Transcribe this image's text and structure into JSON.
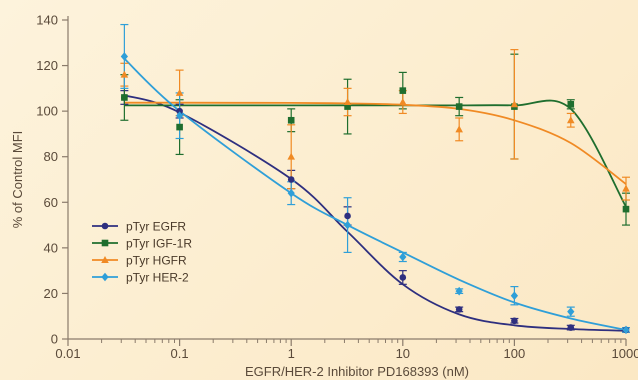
{
  "chart_data": {
    "type": "line",
    "title": "",
    "xlabel": "EGFR/HER-2 Inhibitor PD168393 (nM)",
    "ylabel": "% of Control MFI",
    "x_scale": "log",
    "xlim": [
      0.01,
      1000
    ],
    "ylim": [
      0,
      140
    ],
    "x_ticks": [
      0.01,
      0.1,
      1,
      10,
      100,
      1000
    ],
    "x_tick_labels": [
      "0.01",
      "0.1",
      "1",
      "10",
      "100",
      "1000"
    ],
    "y_ticks": [
      0,
      20,
      40,
      60,
      80,
      100,
      120,
      140
    ],
    "y_tick_labels": [
      "0",
      "20",
      "40",
      "60",
      "80",
      "100",
      "120",
      "140"
    ],
    "grid": false,
    "legend_position": "center-left",
    "x": [
      0.032,
      0.1,
      1,
      3.2,
      10,
      32,
      100,
      320,
      1000
    ],
    "series": [
      {
        "name": "pTyr EGFR",
        "color": "#2e2f7f",
        "marker": "circle",
        "values": [
          106,
          100,
          70,
          54,
          27,
          13,
          8,
          5,
          4
        ],
        "errors": [
          3,
          3,
          4,
          4,
          3,
          1,
          1,
          1,
          1
        ],
        "fit": [
          107,
          99.4,
          70.2,
          47,
          24,
          10.8,
          6,
          4.4,
          3.6
        ]
      },
      {
        "name": "pTyr IGF-1R",
        "color": "#1f6e2e",
        "marker": "square",
        "values": [
          106,
          93,
          96,
          102,
          109,
          102,
          102,
          103,
          57
        ],
        "errors": [
          10,
          12,
          5,
          12,
          8,
          4,
          23,
          2,
          7
        ],
        "fit": [
          102.5,
          102.5,
          102.5,
          102.5,
          102.5,
          102.5,
          102.5,
          101,
          58
        ]
      },
      {
        "name": "pTyr HGFR",
        "color": "#f08a24",
        "marker": "triangle",
        "values": [
          116,
          108,
          80,
          104,
          104,
          92,
          103,
          96,
          66
        ],
        "errors": [
          5,
          10,
          14,
          6,
          5,
          5,
          24,
          3,
          5
        ],
        "fit": [
          103.7,
          103.7,
          103.6,
          103.4,
          102.8,
          101,
          96,
          86,
          68
        ]
      },
      {
        "name": "pTyr HER-2",
        "color": "#2f9fd8",
        "marker": "diamond",
        "values": [
          124,
          98,
          64,
          50,
          36,
          21,
          19,
          12,
          4
        ],
        "errors": [
          14,
          10,
          5,
          12,
          2,
          1,
          4,
          2,
          1
        ],
        "fit": [
          123,
          100,
          64,
          50,
          38,
          26,
          16,
          9,
          4
        ]
      }
    ]
  }
}
